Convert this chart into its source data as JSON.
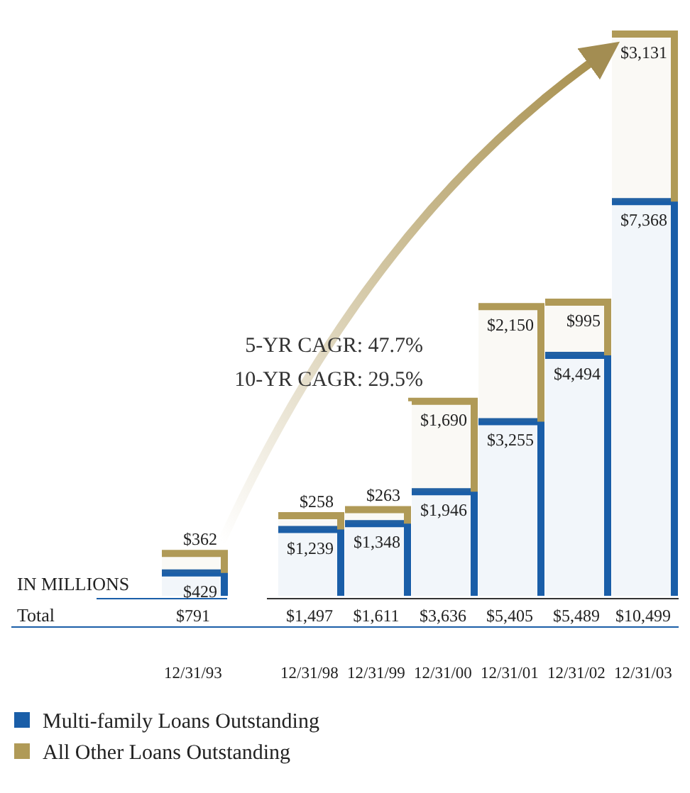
{
  "chart_data": {
    "type": "bar",
    "stacked": true,
    "categories": [
      "12/31/93",
      "12/31/98",
      "12/31/99",
      "12/31/00",
      "12/31/01",
      "12/31/02",
      "12/31/03"
    ],
    "series": [
      {
        "name": "Multi-family Loans Outstanding",
        "color": "#1a5ea8",
        "values": [
          429,
          1239,
          1348,
          1946,
          3255,
          4494,
          7368
        ],
        "value_labels": [
          "$429",
          "$1,239",
          "$1,348",
          "$1,946",
          "$3,255",
          "$4,494",
          "$7,368"
        ]
      },
      {
        "name": "All Other Loans Outstanding",
        "color": "#b09a57",
        "values": [
          362,
          258,
          263,
          1690,
          2150,
          995,
          3131
        ],
        "value_labels": [
          "$362",
          "$258",
          "$263",
          "$1,690",
          "$2,150",
          "$995",
          "$3,131"
        ]
      }
    ],
    "totals": [
      "$791",
      "$1,497",
      "$1,611",
      "$3,636",
      "$5,405",
      "$5,489",
      "$10,499"
    ],
    "annotations": [
      "5-YR CAGR: 47.7%",
      "10-YR CAGR: 29.5%",
      "IN MILLIONS",
      "Total"
    ],
    "legend": "bottom"
  }
}
